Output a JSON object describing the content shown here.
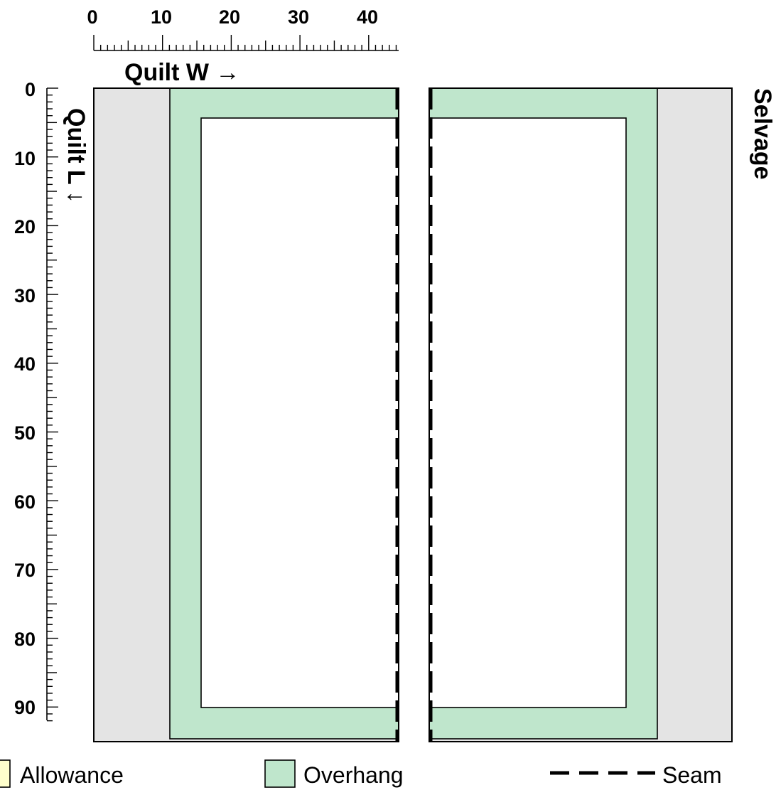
{
  "axes": {
    "x_title": "Quilt W →",
    "y_title": "Quilt L ↓",
    "x_ticks": [
      "0",
      "10",
      "20",
      "30",
      "40"
    ],
    "y_ticks": [
      "0",
      "10",
      "20",
      "30",
      "40",
      "50",
      "60",
      "70",
      "80",
      "90"
    ]
  },
  "side_label": "Selvage",
  "legend": {
    "allowance": "Allowance",
    "overhang": "Overhang",
    "seam": "Seam"
  },
  "colors": {
    "selvage": "#e4e4e4",
    "overhang": "#bfe6cc",
    "allowance": "#ffffcc",
    "outline": "#000000"
  }
}
